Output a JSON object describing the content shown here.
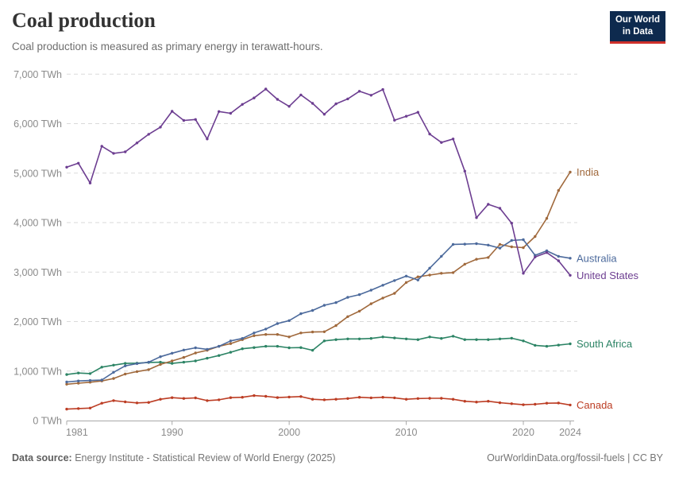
{
  "header": {
    "title": "Coal production",
    "subtitle": "Coal production is measured as primary energy in terawatt-hours."
  },
  "logo": {
    "line1": "Our World",
    "line2": "in Data",
    "bg_color": "#0E2A4E",
    "bar_color": "#CE302A"
  },
  "footer": {
    "source_label": "Data source:",
    "source_text": " Energy Institute - Statistical Review of World Energy (2025)",
    "right_text": "OurWorldinData.org/fossil-fuels | CC BY"
  },
  "chart_data": {
    "type": "line",
    "title": "Coal production",
    "unit": "TWh",
    "grid": "dashed horizontal gridlines",
    "legend_position": "right edge series labels",
    "x": {
      "start_year": 1981,
      "end_year": 2024,
      "tick_years": [
        1981,
        1990,
        2000,
        2010,
        2020,
        2024
      ],
      "tick_labels": [
        "1981",
        "1990",
        "2000",
        "2010",
        "2020",
        "2024"
      ]
    },
    "y": {
      "min": 0,
      "max": 7000,
      "tick_step": 1000,
      "tick_values": [
        0,
        1000,
        2000,
        3000,
        4000,
        5000,
        6000,
        7000
      ],
      "tick_labels": [
        "0 TWh",
        "1,000 TWh",
        "2,000 TWh",
        "3,000 TWh",
        "4,000 TWh",
        "5,000 TWh",
        "6,000 TWh",
        "7,000 TWh"
      ]
    },
    "series": [
      {
        "name": "India",
        "color": "#A0693C",
        "values": [
          735,
          755,
          775,
          800,
          850,
          940,
          990,
          1030,
          1135,
          1205,
          1275,
          1365,
          1420,
          1500,
          1555,
          1635,
          1715,
          1740,
          1740,
          1690,
          1770,
          1790,
          1795,
          1920,
          2100,
          2210,
          2360,
          2475,
          2570,
          2790,
          2905,
          2940,
          2975,
          2990,
          3160,
          3260,
          3295,
          3560,
          3510,
          3495,
          3720,
          4085,
          4650,
          5020
        ]
      },
      {
        "name": "Australia",
        "color": "#4C6A9C",
        "values": [
          780,
          800,
          810,
          820,
          975,
          1105,
          1150,
          1180,
          1290,
          1360,
          1425,
          1470,
          1440,
          1500,
          1610,
          1660,
          1770,
          1850,
          1960,
          2020,
          2160,
          2225,
          2330,
          2385,
          2490,
          2545,
          2635,
          2735,
          2830,
          2920,
          2840,
          3080,
          3320,
          3560,
          3565,
          3575,
          3545,
          3485,
          3640,
          3655,
          3340,
          3430,
          3320,
          3280
        ]
      },
      {
        "name": "United States",
        "color": "#6D3E91",
        "values": [
          5120,
          5200,
          4800,
          5545,
          5400,
          5430,
          5610,
          5785,
          5930,
          6250,
          6065,
          6085,
          5690,
          6245,
          6210,
          6390,
          6520,
          6700,
          6490,
          6350,
          6580,
          6410,
          6190,
          6400,
          6500,
          6655,
          6575,
          6690,
          6070,
          6150,
          6230,
          5790,
          5620,
          5690,
          5040,
          4100,
          4370,
          4290,
          3990,
          2975,
          3305,
          3395,
          3230,
          2935
        ]
      },
      {
        "name": "South Africa",
        "color": "#2C8465",
        "values": [
          930,
          960,
          950,
          1080,
          1120,
          1155,
          1160,
          1175,
          1180,
          1155,
          1180,
          1205,
          1260,
          1315,
          1380,
          1450,
          1475,
          1500,
          1500,
          1470,
          1475,
          1420,
          1610,
          1635,
          1650,
          1650,
          1660,
          1690,
          1670,
          1650,
          1635,
          1690,
          1660,
          1705,
          1635,
          1635,
          1635,
          1650,
          1665,
          1610,
          1520,
          1500,
          1525,
          1550
        ]
      },
      {
        "name": "Canada",
        "color": "#BC3D24",
        "values": [
          232,
          242,
          253,
          350,
          404,
          377,
          356,
          366,
          431,
          463,
          447,
          458,
          404,
          420,
          463,
          470,
          505,
          490,
          465,
          475,
          485,
          430,
          420,
          430,
          445,
          470,
          460,
          470,
          460,
          430,
          445,
          450,
          450,
          430,
          390,
          375,
          390,
          360,
          340,
          320,
          330,
          350,
          355,
          315
        ]
      }
    ]
  }
}
